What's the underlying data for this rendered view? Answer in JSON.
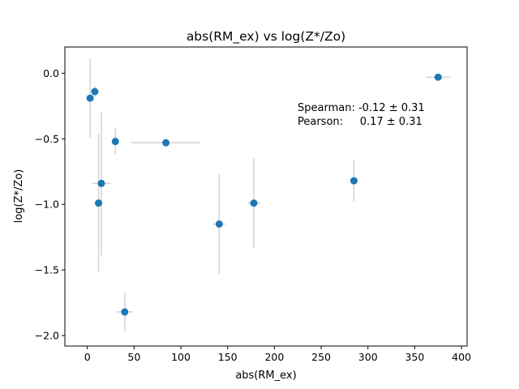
{
  "chart_data": {
    "type": "scatter",
    "title": "abs(RM_ex) vs log(Z*/Zo)",
    "xlabel": "abs(RM_ex)",
    "ylabel": "log(Z*/Zo)",
    "xlim": [
      -24,
      406
    ],
    "ylim": [
      -2.08,
      0.2
    ],
    "xticks": [
      0,
      50,
      100,
      150,
      200,
      250,
      300,
      350,
      400
    ],
    "yticks": [
      -2.0,
      -1.5,
      -1.0,
      -0.5,
      0.0
    ],
    "xtick_labels": [
      "0",
      "50",
      "100",
      "150",
      "200",
      "250",
      "300",
      "350",
      "400"
    ],
    "ytick_labels": [
      "−2.0",
      "−1.5",
      "−1.0",
      "−0.5",
      "0.0"
    ],
    "grid": false,
    "marker_color": "#1f77b4",
    "errorbar_color": "#d3d3d3",
    "points": [
      {
        "x": 3,
        "y": -0.19,
        "xerr": 0,
        "yerr": 0.3
      },
      {
        "x": 8,
        "y": -0.14,
        "xerr": 3,
        "yerr": 0.04
      },
      {
        "x": 12,
        "y": -0.99,
        "xerr": 3,
        "yerr": 0.53
      },
      {
        "x": 15,
        "y": -0.84,
        "xerr": 10,
        "yerr": 0.55
      },
      {
        "x": 30,
        "y": -0.52,
        "xerr": 0,
        "yerr": 0.1
      },
      {
        "x": 40,
        "y": -1.82,
        "xerr": 9,
        "yerr": 0.15
      },
      {
        "x": 84,
        "y": -0.53,
        "xerr": 37,
        "yerr": 0
      },
      {
        "x": 141,
        "y": -1.15,
        "xerr": 7,
        "yerr": 0.38
      },
      {
        "x": 178,
        "y": -0.99,
        "xerr": 7,
        "yerr": 0.34
      },
      {
        "x": 285,
        "y": -0.82,
        "xerr": 0,
        "yerr": 0.16
      },
      {
        "x": 375,
        "y": -0.03,
        "xerr": 13,
        "yerr": 0
      }
    ],
    "annotation": {
      "line1": "Spearman: -0.12 ± 0.31",
      "line2": "Pearson:     0.17 ± 0.31"
    }
  }
}
